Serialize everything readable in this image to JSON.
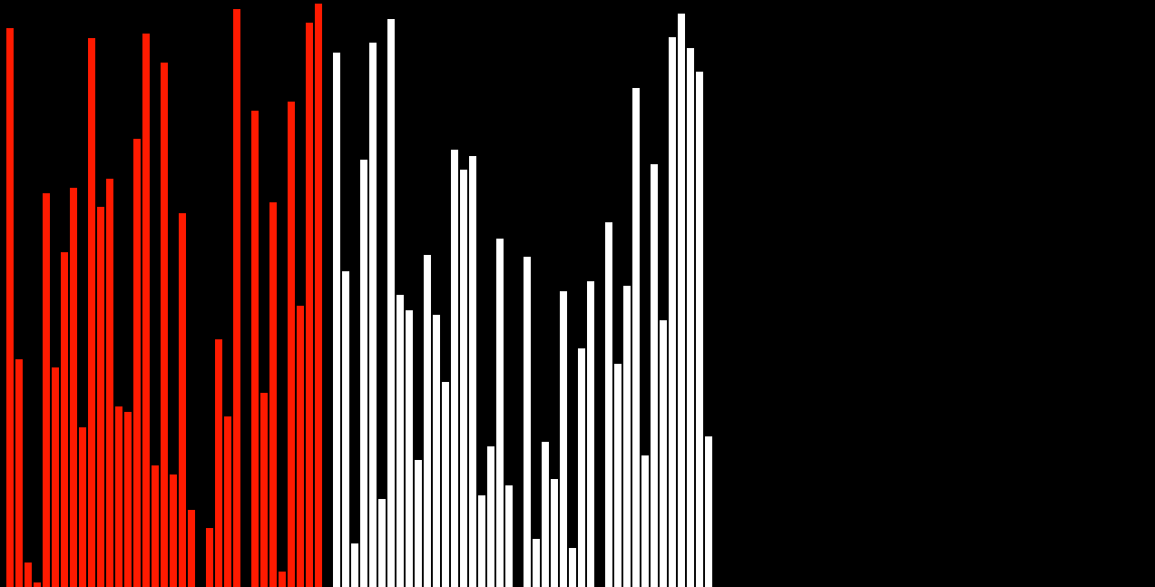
{
  "chart_data": {
    "type": "bar",
    "title": "",
    "xlabel": "",
    "ylabel": "",
    "ylim": [
      0,
      647
    ],
    "grid": false,
    "legend": "none",
    "colors": {
      "background": "#000000",
      "sorted": "#ff1a00",
      "unsorted": "#ffffff"
    },
    "series": [
      {
        "name": "sorted",
        "start_index": 0,
        "values": [
          616,
          251,
          27,
          5,
          434,
          242,
          369,
          440,
          176,
          605,
          419,
          450,
          199,
          193,
          494,
          610,
          134,
          578,
          124,
          412,
          85,
          0,
          65,
          273,
          188,
          637,
          0,
          525,
          214,
          424,
          17,
          535,
          310,
          622,
          643
        ]
      },
      {
        "name": "unsorted",
        "start_index": 36,
        "values": [
          589,
          348,
          48,
          471,
          600,
          97,
          626,
          322,
          305,
          140,
          366,
          300,
          226,
          482,
          460,
          475,
          101,
          155,
          384,
          112,
          0,
          364,
          53,
          160,
          119,
          326,
          43,
          263,
          337,
          0,
          402,
          246,
          332,
          550,
          145,
          466,
          294,
          606,
          632,
          594,
          568,
          166,
          0,
          0,
          0,
          0,
          0,
          0,
          0,
          0,
          0,
          0,
          0,
          0,
          0,
          0,
          0,
          0,
          0,
          0,
          0,
          0,
          0,
          0,
          0,
          0,
          0,
          0,
          0,
          0,
          0,
          0,
          0,
          0,
          0,
          0,
          0,
          0,
          0,
          0,
          0,
          0,
          0,
          0,
          0,
          0,
          0,
          0,
          0,
          0,
          0,
          0,
          0,
          0,
          0,
          0,
          0,
          0,
          0,
          0,
          0,
          0,
          0,
          0,
          0,
          0,
          0,
          0,
          0,
          0,
          0,
          0,
          0,
          0,
          0,
          0,
          0,
          0,
          0,
          0,
          0,
          0,
          0,
          0
        ]
      }
    ]
  }
}
